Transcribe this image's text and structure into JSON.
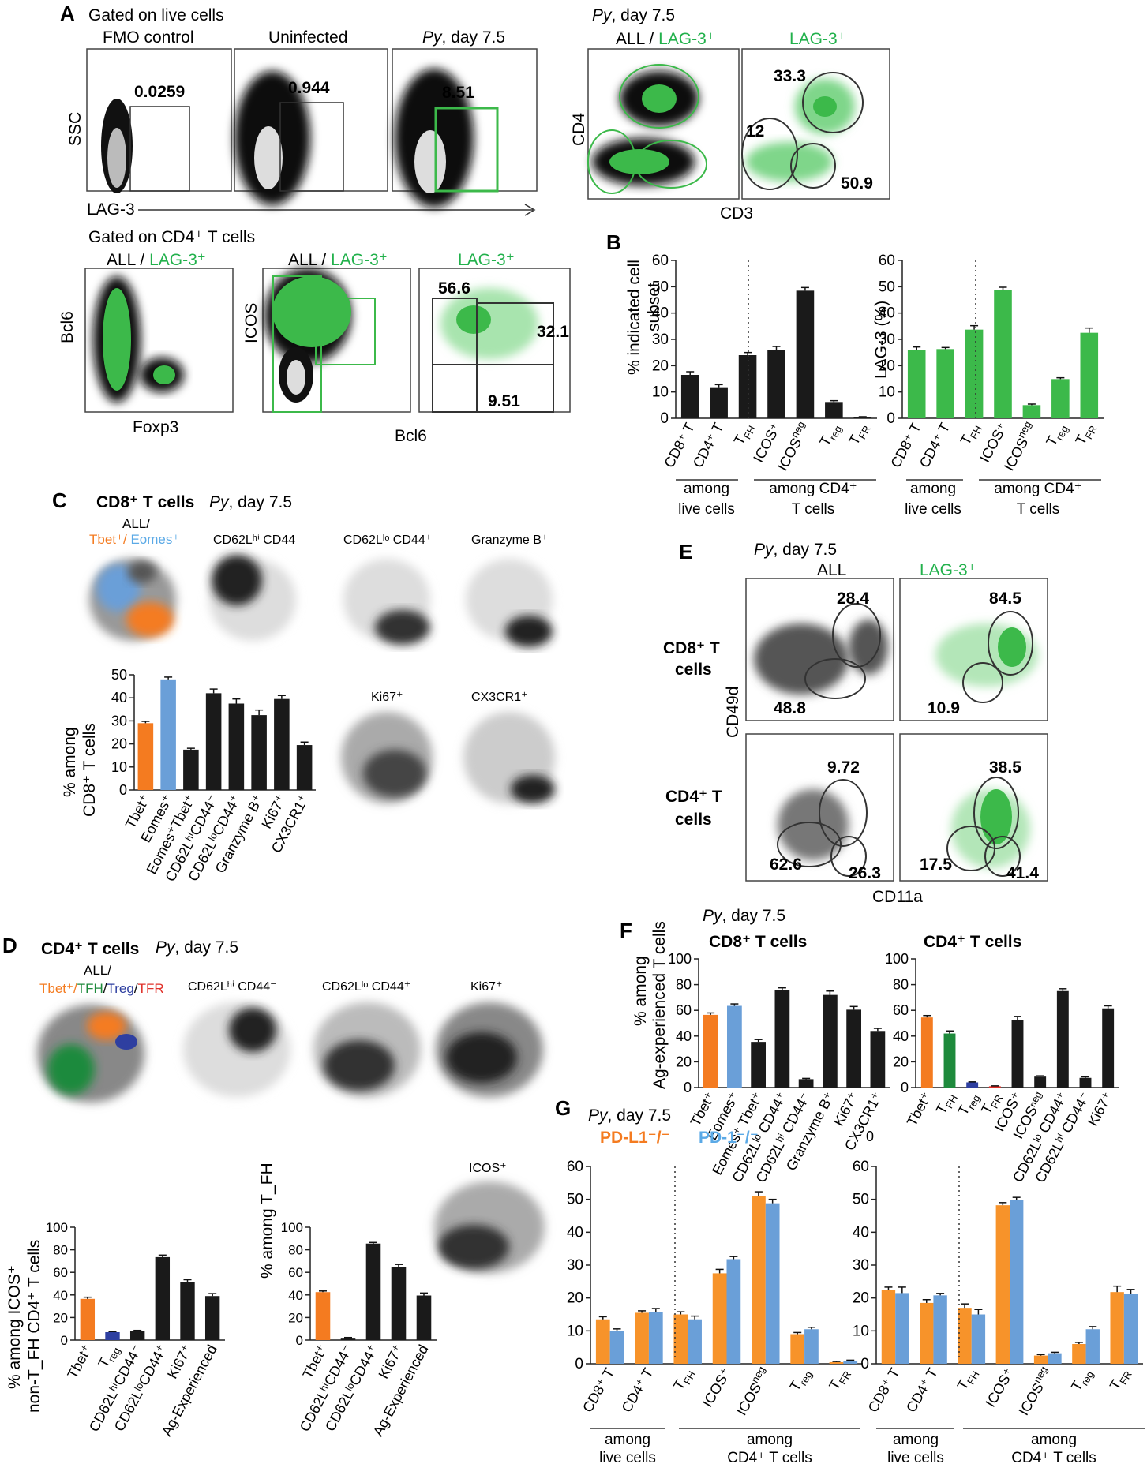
{
  "colors": {
    "green": "#3cb94a",
    "green_text": "#22b14c",
    "orange": "#f47b20",
    "blue": "#6a9fd8",
    "light_blue": "#5aa9e6",
    "black": "#1a1a1a",
    "tfh_green": "#1e8a3c",
    "treg_blue": "#2e3fa0",
    "tfr_red": "#e0312a"
  },
  "panelA": {
    "letter": "A",
    "gate1": "Gated on live cells",
    "gate2": "Gated on CD4⁺ T cells",
    "plots": [
      {
        "title": "FMO control",
        "value": "0.0259"
      },
      {
        "title": "Uninfected",
        "value": "0.944"
      },
      {
        "title": "Py, day 7.5",
        "value": "8.51"
      }
    ],
    "ylabel": "SSC",
    "xlabel": "LAG-3",
    "py_title": "Py, day 7.5",
    "all_lag": "ALL / ",
    "lag3": "LAG-3⁺",
    "cd4_axis": "CD4",
    "cd3_axis": "CD3",
    "cd3_values": [
      "33.3",
      "12",
      "50.9"
    ],
    "bcl6_axis": "Bcl6",
    "foxp3_axis": "Foxp3",
    "icos_axis": "ICOS",
    "bcl6_x": "Bcl6",
    "icos_values": [
      "56.6",
      "32.1",
      "9.51"
    ]
  },
  "panelB": {
    "letter": "B",
    "left_ylabel": [
      "% indicated cell",
      "subset"
    ],
    "right_ylabel": "LAG-3 (%)",
    "group1": [
      "among",
      "live cells"
    ],
    "group2": [
      "among CD4⁺",
      "T cells"
    ],
    "chart_data": [
      {
        "type": "bar",
        "title": "",
        "ylabel": "% indicated cell subset",
        "ylim": [
          0,
          60
        ],
        "yticks": [
          "0",
          "10",
          "20",
          "30",
          "40",
          "50",
          "60"
        ],
        "categories": [
          "CD8⁺ T",
          "CD4⁺ T",
          "T_FH",
          "ICOS⁺",
          "ICOS^neg",
          "T_reg",
          "T_FR"
        ],
        "values": [
          16.5,
          11.8,
          24,
          26,
          48.5,
          6.2,
          0.4
        ],
        "errors": [
          1.2,
          1,
          1,
          1.3,
          1.2,
          0.5,
          0.2
        ],
        "color": "#1a1a1a"
      },
      {
        "type": "bar",
        "title": "",
        "ylabel": "LAG-3 (%)",
        "ylim": [
          0,
          60
        ],
        "yticks": [
          "0",
          "10",
          "20",
          "30",
          "40",
          "50",
          "60"
        ],
        "categories": [
          "CD8⁺ T",
          "CD4⁺ T",
          "T_FH",
          "ICOS⁺",
          "ICOS^neg",
          "T_reg",
          "T_FR"
        ],
        "values": [
          25.8,
          26.3,
          33.7,
          48.6,
          5,
          14.9,
          32.5
        ],
        "errors": [
          1.3,
          0.6,
          1.5,
          1.2,
          0.4,
          0.5,
          1.8
        ],
        "color": "#3cb94a"
      }
    ]
  },
  "panelC": {
    "letter": "C",
    "title": "CD8⁺ T cells",
    "py": "Py, day 7.5",
    "legend_all": "ALL/",
    "legend_tbet": "Tbet⁺/",
    "legend_eomes": " Eomes⁺",
    "maps": [
      "CD62Lʰⁱ CD44⁻",
      "CD62Lˡᵒ CD44⁺",
      "Granzyme B⁺",
      "Ki67⁺",
      "CX3CR1⁺"
    ],
    "ylabel": [
      "% among",
      "CD8⁺ T cells"
    ],
    "chart_data": {
      "type": "bar",
      "ylim": [
        0,
        50
      ],
      "yticks": [
        "0",
        "10",
        "20",
        "30",
        "40",
        "50"
      ],
      "categories": [
        "Tbet⁺",
        "Eomes⁺",
        "Eomes⁺Tbet⁺",
        "CD62LʰⁱCD44⁻",
        "CD62LˡᵒCD44⁺",
        "Granzyme B⁺",
        "Ki67⁺",
        "CX3CR1⁺"
      ],
      "values": [
        29,
        48,
        17.5,
        42,
        37.5,
        32.5,
        39.5,
        19.5
      ],
      "errors": [
        0.8,
        1,
        0.6,
        1.8,
        2,
        2.2,
        1.5,
        1.3
      ],
      "colors": [
        "#f47b20",
        "#6a9fd8",
        "#1a1a1a",
        "#1a1a1a",
        "#1a1a1a",
        "#1a1a1a",
        "#1a1a1a",
        "#1a1a1a"
      ]
    }
  },
  "panelD": {
    "letter": "D",
    "title": "CD4⁺ T cells",
    "py": "Py, day 7.5",
    "legend_all": "ALL/",
    "legend_tbet": "Tbet⁺/",
    "legend_tfh": "TFH",
    "legend_treg": "Treg",
    "legend_tfr": "TFR",
    "maps": [
      "CD62Lʰⁱ CD44⁻",
      "CD62Lˡᵒ CD44⁺",
      "Ki67⁺",
      "ICOS⁺"
    ],
    "ylabel1": [
      "% among ICOS⁺",
      "non-T_FH CD4⁺ T cells"
    ],
    "ylabel2": "% among T_FH",
    "chart_data": [
      {
        "type": "bar",
        "ylim": [
          0,
          100
        ],
        "yticks": [
          "0",
          "20",
          "40",
          "60",
          "80",
          "100"
        ],
        "categories": [
          "Tbet⁺",
          "T_reg",
          "CD62LʰⁱCD44⁻",
          "CD62LˡᵒCD44⁺",
          "Ki67⁺",
          "Ag-Experienced"
        ],
        "values": [
          36.5,
          7,
          8,
          73.5,
          51.5,
          39
        ],
        "errors": [
          1.5,
          0.5,
          0.6,
          1.8,
          2,
          2.2
        ],
        "colors": [
          "#f47b20",
          "#2e3fa0",
          "#1a1a1a",
          "#1a1a1a",
          "#1a1a1a",
          "#1a1a1a"
        ]
      },
      {
        "type": "bar",
        "ylim": [
          0,
          100
        ],
        "yticks": [
          "0",
          "20",
          "40",
          "60",
          "80",
          "100"
        ],
        "categories": [
          "Tbet⁺",
          "CD62LʰⁱCD44⁻",
          "CD62LˡᵒCD44⁺",
          "Ki67⁺",
          "Ag-Experienced"
        ],
        "values": [
          42.5,
          2,
          85.5,
          65,
          39.5
        ],
        "errors": [
          1,
          0.3,
          1,
          2,
          2.2
        ],
        "colors": [
          "#f47b20",
          "#1a1a1a",
          "#1a1a1a",
          "#1a1a1a",
          "#1a1a1a"
        ]
      }
    ]
  },
  "panelE": {
    "letter": "E",
    "py": "Py, day 7.5",
    "all": "ALL",
    "lag3": "LAG-3⁺",
    "row1": [
      "CD8⁺ T",
      "cells"
    ],
    "row2": [
      "CD4⁺ T",
      "cells"
    ],
    "yaxis": "CD49d",
    "xaxis": "CD11a",
    "values": [
      "28.4",
      "48.8",
      "84.5",
      "10.9",
      "9.72",
      "62.6",
      "26.3",
      "38.5",
      "17.5",
      "41.4"
    ]
  },
  "panelF": {
    "letter": "F",
    "py": "Py, day 7.5",
    "title1": "CD8⁺ T cells",
    "title2": "CD4⁺ T cells",
    "ylabel": [
      "% among",
      "Ag-experienced T cells"
    ],
    "chart_data": [
      {
        "type": "bar",
        "ylim": [
          0,
          100
        ],
        "yticks": [
          "0",
          "20",
          "40",
          "60",
          "80",
          "100"
        ],
        "categories": [
          "Tbet⁺",
          "Eomes⁺",
          "Eomes⁺ Tbet⁺",
          "CD62Lˡᵒ CD44⁺",
          "CD62Lʰⁱ CD44⁻",
          "Granzyme B⁺",
          "Ki67⁺",
          "CX3CR1⁺"
        ],
        "values": [
          56.5,
          63.5,
          35.5,
          76,
          6.5,
          72,
          60.5,
          44
        ],
        "errors": [
          1.5,
          1.5,
          1.8,
          1.5,
          0.6,
          3,
          2.5,
          2
        ],
        "colors": [
          "#f47b20",
          "#6a9fd8",
          "#1a1a1a",
          "#1a1a1a",
          "#1a1a1a",
          "#1a1a1a",
          "#1a1a1a",
          "#1a1a1a"
        ]
      },
      {
        "type": "bar",
        "ylim": [
          0,
          100
        ],
        "yticks": [
          "0",
          "20",
          "40",
          "60",
          "80",
          "100"
        ],
        "categories": [
          "Tbet⁺",
          "T_FH",
          "T_reg",
          "T_FR",
          "ICOS⁺",
          "ICOSⁿᵉᵍ",
          "CD62Lˡᵒ CD44⁺",
          "CD62Lʰⁱ CD44⁻",
          "Ki67⁺"
        ],
        "values": [
          54.5,
          42,
          4,
          1,
          52.5,
          8.5,
          75,
          7.5,
          61.5
        ],
        "errors": [
          1.5,
          2,
          0.4,
          0.3,
          2.8,
          0.6,
          1.8,
          0.8,
          2
        ],
        "colors": [
          "#f47b20",
          "#1e8a3c",
          "#2e3fa0",
          "#e0312a",
          "#1a1a1a",
          "#1a1a1a",
          "#1a1a1a",
          "#1a1a1a",
          "#1a1a1a"
        ]
      }
    ]
  },
  "panelG": {
    "letter": "G",
    "py": "Py, day 7.5",
    "pdl1": "PD-L1⁻/⁻",
    "pd1": "PD-1⁻/⁻",
    "zero": "0",
    "group1": [
      "among",
      "live cells"
    ],
    "group2": [
      "among",
      "CD4⁺ T cells"
    ],
    "chart_data": [
      {
        "type": "bar",
        "ylim": [
          0,
          60
        ],
        "yticks": [
          "0",
          "10",
          "20",
          "30",
          "40",
          "50",
          "60"
        ],
        "categories": [
          "CD8⁺ T",
          "CD4⁺ T",
          "T_FH",
          "ICOS⁺",
          "ICOS^neg",
          "T_reg",
          "T_FR"
        ],
        "series": [
          {
            "name": "PD-L1⁻/⁻",
            "values": [
              13.5,
              15.5,
              15,
              27.5,
              51,
              9,
              0.5
            ],
            "errors": [
              0.8,
              0.6,
              0.8,
              1.2,
              1.3,
              0.5,
              0.2
            ]
          },
          {
            "name": "PD-1⁻/⁻",
            "values": [
              10,
              15.8,
              13.5,
              31.8,
              48.8,
              10.5,
              0.8
            ],
            "errors": [
              0.6,
              1,
              1,
              0.8,
              1.2,
              0.6,
              0.3
            ]
          }
        ]
      },
      {
        "type": "bar",
        "ylim": [
          0,
          60
        ],
        "yticks": [
          "0",
          "10",
          "20",
          "30",
          "40",
          "50",
          "60"
        ],
        "categories": [
          "CD8⁺ T",
          "CD4⁺ T",
          "T_FH",
          "ICOS⁺",
          "ICOS^neg",
          "T_reg",
          "T_FR"
        ],
        "series": [
          {
            "name": "PD-L1⁻/⁻",
            "values": [
              22.5,
              18.5,
              17,
              48.2,
              2.5,
              6,
              21.8
            ],
            "errors": [
              0.8,
              1,
              1.2,
              0.8,
              0.3,
              0.5,
              1.8
            ]
          },
          {
            "name": "PD-1⁻/⁻",
            "values": [
              21.5,
              20.8,
              15,
              49.8,
              3.2,
              10.5,
              21.3
            ],
            "errors": [
              1.8,
              0.6,
              1.5,
              0.8,
              0.3,
              0.8,
              1.3
            ]
          }
        ]
      }
    ]
  }
}
